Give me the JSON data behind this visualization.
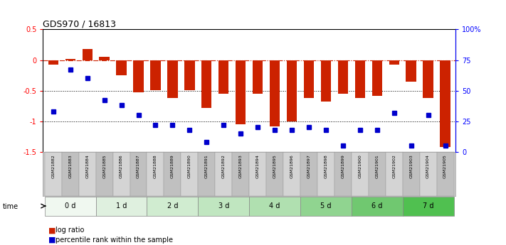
{
  "title": "GDS970 / 16813",
  "samples": [
    "GSM21882",
    "GSM21883",
    "GSM21884",
    "GSM21885",
    "GSM21886",
    "GSM21887",
    "GSM21888",
    "GSM21889",
    "GSM21890",
    "GSM21891",
    "GSM21892",
    "GSM21893",
    "GSM21894",
    "GSM21895",
    "GSM21896",
    "GSM21897",
    "GSM21898",
    "GSM21899",
    "GSM21900",
    "GSM21901",
    "GSM21902",
    "GSM21903",
    "GSM21904",
    "GSM21905"
  ],
  "log_ratio": [
    -0.08,
    0.02,
    0.18,
    0.05,
    -0.25,
    -0.53,
    -0.49,
    -0.62,
    -0.49,
    -0.78,
    -0.55,
    -1.05,
    -0.55,
    -1.08,
    -1.0,
    -0.62,
    -0.68,
    -0.55,
    -0.62,
    -0.58,
    -0.08,
    -0.35,
    -0.62,
    -1.42
  ],
  "percentile_rank": [
    33,
    67,
    60,
    42,
    38,
    30,
    22,
    22,
    18,
    8,
    22,
    15,
    20,
    18,
    18,
    20,
    18,
    5,
    18,
    18,
    32,
    5,
    30,
    5
  ],
  "groups": [
    {
      "label": "0 d",
      "indices": [
        0,
        1,
        2
      ],
      "color": "#f0f8f0"
    },
    {
      "label": "1 d",
      "indices": [
        3,
        4,
        5
      ],
      "color": "#dff0df"
    },
    {
      "label": "2 d",
      "indices": [
        6,
        7,
        8
      ],
      "color": "#d0ecd0"
    },
    {
      "label": "3 d",
      "indices": [
        9,
        10,
        11
      ],
      "color": "#c0e6c0"
    },
    {
      "label": "4 d",
      "indices": [
        12,
        13,
        14
      ],
      "color": "#b0e0b0"
    },
    {
      "label": "5 d",
      "indices": [
        15,
        16,
        17
      ],
      "color": "#90d490"
    },
    {
      "label": "6 d",
      "indices": [
        18,
        19,
        20
      ],
      "color": "#70c870"
    },
    {
      "label": "7 d",
      "indices": [
        21,
        22,
        23
      ],
      "color": "#50c050"
    }
  ],
  "bar_color": "#cc2200",
  "dot_color": "#0000cc",
  "ylim_left": [
    -1.5,
    0.5
  ],
  "ylim_right": [
    0,
    100
  ],
  "hline_y": 0,
  "dotted_lines": [
    -0.5,
    -1.0
  ],
  "right_ticks": [
    0,
    25,
    50,
    75,
    100
  ],
  "right_tick_labels": [
    "0",
    "25",
    "50",
    "75",
    "100%"
  ],
  "left_ticks": [
    -1.5,
    -1.0,
    -0.5,
    0.0,
    0.5
  ],
  "left_tick_labels": [
    "-1.5",
    "-1",
    "-0.5",
    "0",
    "0.5"
  ],
  "background_color": "#ffffff",
  "bar_width": 0.6
}
